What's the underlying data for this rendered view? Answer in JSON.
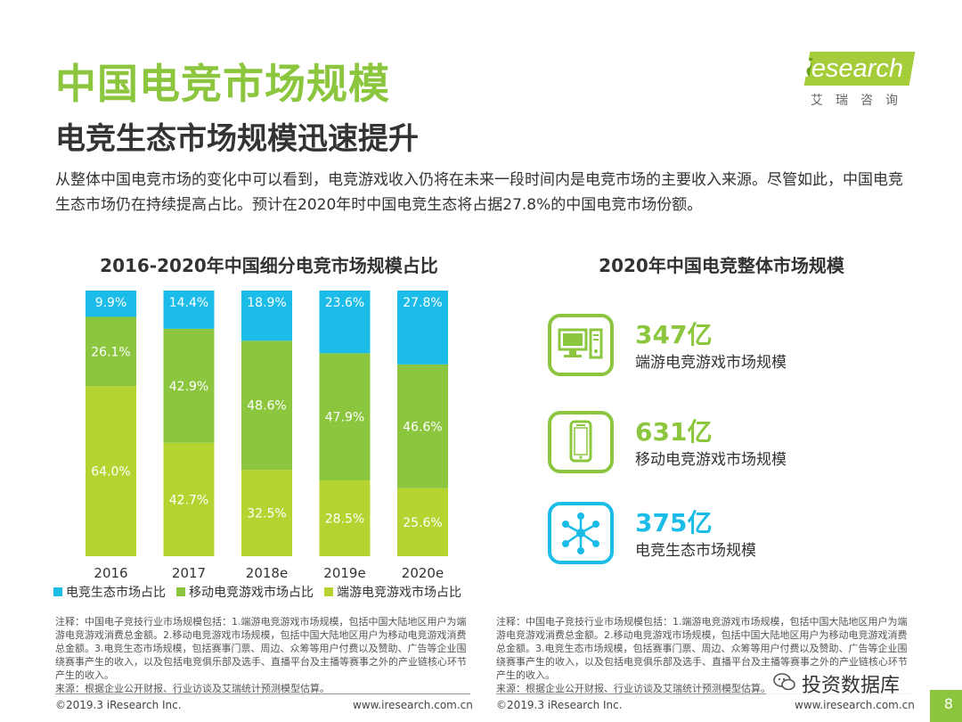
{
  "header": {
    "title": "中国电竞市场规模",
    "subtitle": "电竞生态市场规模迅速提升",
    "description": "从整体中国电竞市场的变化中可以看到，电竞游戏收入仍将在未来一段时间内是电竞市场的主要收入来源。尽管如此，中国电竞生态市场仍在持续提高占比。预计在2020年时中国电竞生态将占据27.8%的中国电竞市场份额。"
  },
  "logo": {
    "text": "Research",
    "initial": "i",
    "cn": "艾瑞咨询"
  },
  "colors": {
    "eco": "#1cbce8",
    "mobile": "#8cc63f",
    "pc": "#b6d431",
    "accent": "#8cc63f"
  },
  "chart_data": {
    "type": "bar",
    "stacked": true,
    "percent": true,
    "title": "2016-2020年中国细分电竞市场规模占比",
    "categories": [
      "2016",
      "2017",
      "2018e",
      "2019e",
      "2020e"
    ],
    "series": [
      {
        "name": "端游电竞游戏市场占比",
        "values": [
          64.0,
          42.7,
          32.5,
          28.5,
          25.6
        ],
        "labels": [
          "64.0%",
          "42.7%",
          "32.5%",
          "28.5%",
          "25.6%"
        ]
      },
      {
        "name": "移动电竞游戏市场占比",
        "values": [
          26.1,
          42.9,
          48.6,
          47.9,
          46.6
        ],
        "labels": [
          "26.1%",
          "42.9%",
          "48.6%",
          "47.9%",
          "46.6%"
        ]
      },
      {
        "name": "电竞生态市场占比",
        "values": [
          9.9,
          14.4,
          18.9,
          23.6,
          27.8
        ],
        "labels": [
          "9.9%",
          "14.4%",
          "18.9%",
          "23.6%",
          "27.8%"
        ]
      }
    ],
    "ylim": [
      0,
      100
    ],
    "legend_position": "bottom",
    "legend": [
      "电竞生态市场占比",
      "移动电竞游戏市场占比",
      "端游电竞游戏市场占比"
    ]
  },
  "right_panel": {
    "title": "2020年中国电竞整体市场规模",
    "stats": [
      {
        "value": "347亿",
        "label": "端游电竞游戏市场规模",
        "icon": "desktop-computer-icon"
      },
      {
        "value": "631亿",
        "label": "移动电竞游戏市场规模",
        "icon": "smartphone-icon"
      },
      {
        "value": "375亿",
        "label": "电竞生态市场规模",
        "icon": "network-nodes-icon"
      }
    ]
  },
  "notes": {
    "left": "注释：中国电子竞技行业市场规模包括：1.端游电竞游戏市场规模，包括中国大陆地区用户为端游电竞游戏消费总金额。2.移动电竞游戏市场规模，包括中国大陆地区用户为移动电竞游戏消费总金额。3.电竞生态市场规模，包括赛事门票、周边、众筹等用户付费以及赞助、广告等企业围绕赛事产生的收入，以及包括电竞俱乐部及选手、直播平台及主播等赛事之外的产业链核心环节产生的收入。",
    "left_source": "来源：根据企业公开财报、行业访谈及艾瑞统计预测模型估算。",
    "right": "注释：中国电子竞技行业市场规模包括：1.端游电竞游戏市场规模，包括中国大陆地区用户为端游电竞游戏消费总金额。2.移动电竞游戏市场规模，包括中国大陆地区用户为移动电竞游戏消费总金额。3.电竞生态市场规模，包括赛事门票、周边、众筹等用户付费以及赞助、广告等企业围绕赛事产生的收入，以及包括电竞俱乐部及选手、直播平台及主播等赛事之外的产业链核心环节产生的收入。",
    "right_source": "来源：根据企业公开财报、行业访谈及艾瑞统计预测模型估算。"
  },
  "footer": {
    "copyright_left": "©2019.3 iResearch Inc.",
    "url_left": "www.iresearch.com.cn",
    "copyright_right": "©2019.3 iResearch Inc.",
    "url_right": "www.iresearch.com.cn",
    "page": "8"
  },
  "watermark": {
    "text": "投资数据库",
    "icon": "wechat-icon"
  }
}
